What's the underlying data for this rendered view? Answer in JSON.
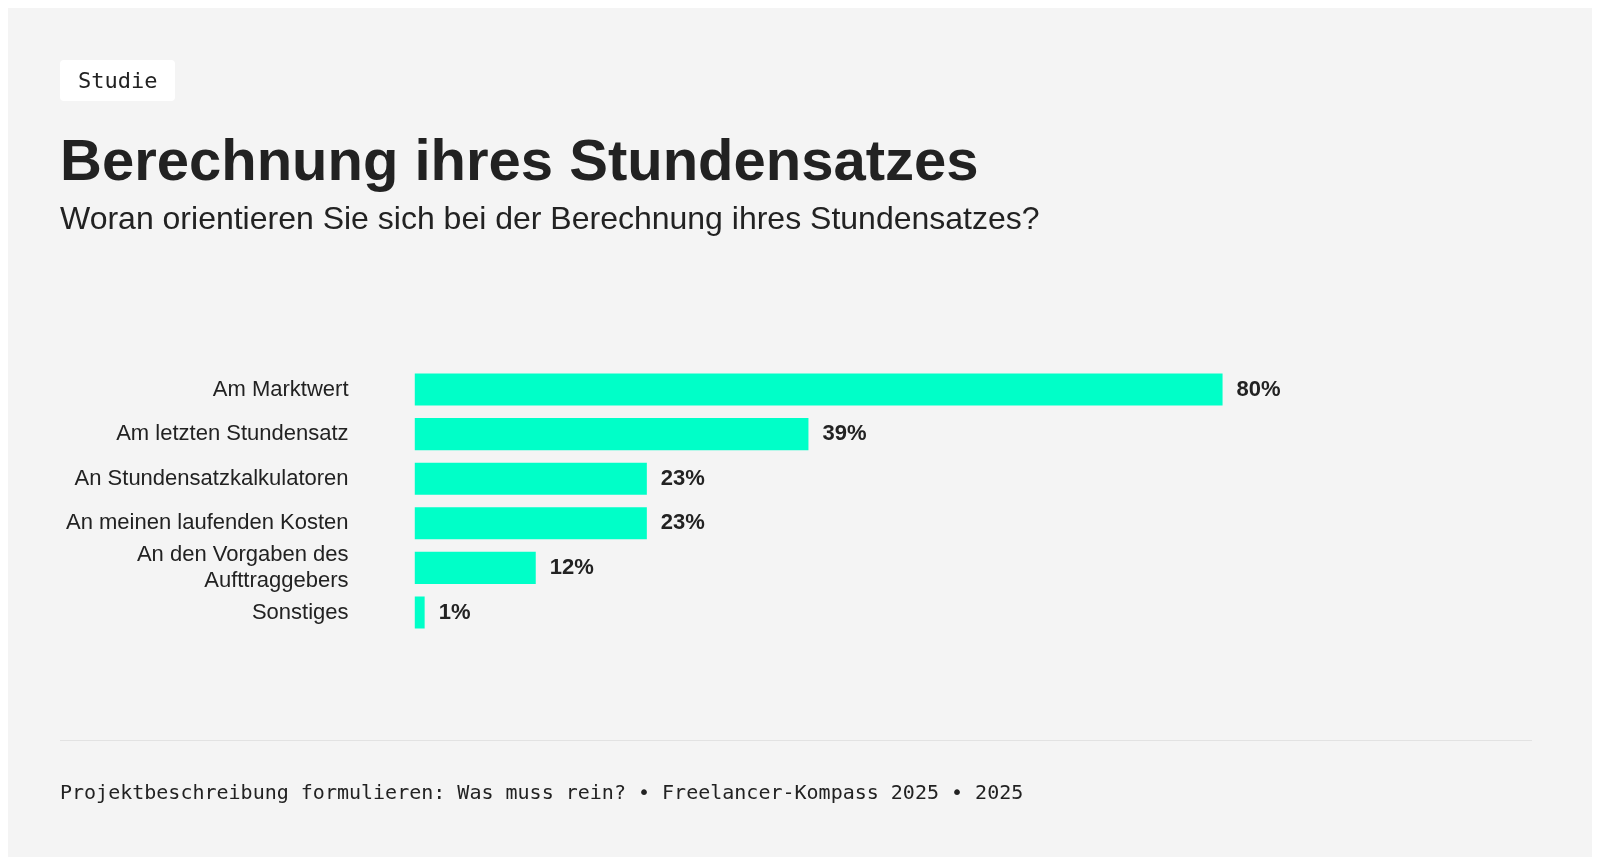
{
  "chart_data": {
    "type": "bar",
    "orientation": "horizontal",
    "title": "Berechnung ihres Stundensatzes",
    "subtitle": "Woran orientieren Sie sich bei der Berechnung ihres Stundensatzes?",
    "categories": [
      "Am Marktwert",
      "Am letzten Stundensatz",
      "An Stundensatzkalkulatoren",
      "An meinen laufenden Kosten",
      "An den Vorgaben des Aufttraggebers",
      "Sonstiges"
    ],
    "values": [
      80,
      39,
      23,
      23,
      12,
      1
    ],
    "value_labels": [
      "80%",
      "39%",
      "23%",
      "23%",
      "12%",
      "1%"
    ],
    "color": "#00ffc8",
    "legend": false,
    "annotations": [
      "Studie",
      "Projektbeschreibung formulieren: Was muss rein? • Freelancer-Kompass 2025 • 2025"
    ]
  }
}
